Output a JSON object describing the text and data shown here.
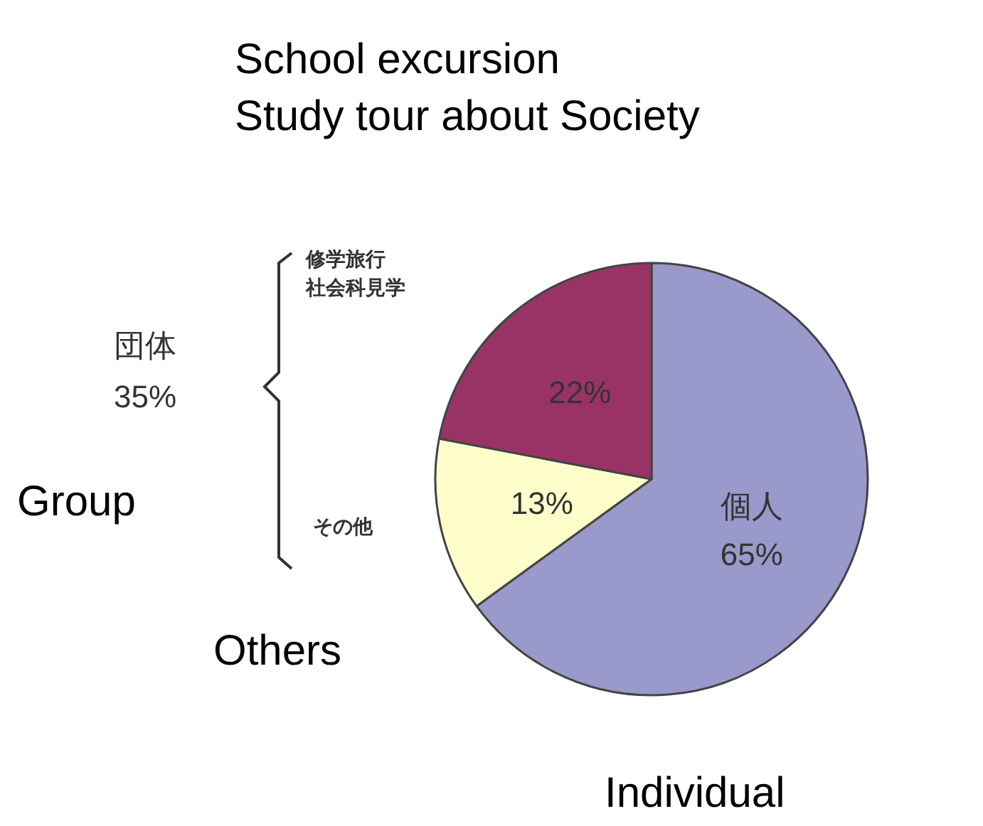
{
  "chart_data": {
    "type": "pie",
    "categories": [
      "個人",
      "その他",
      "修学旅行社会科見学"
    ],
    "values": [
      65,
      13,
      22
    ],
    "colors": [
      "#9999cc",
      "#ffffcc",
      "#993366"
    ],
    "value_labels": [
      "65%",
      "13%",
      "22%"
    ],
    "annotations": [
      "School excursion\nStudy tour about Society",
      "団体\n35%",
      "Group",
      "Others",
      "Individual"
    ]
  }
}
